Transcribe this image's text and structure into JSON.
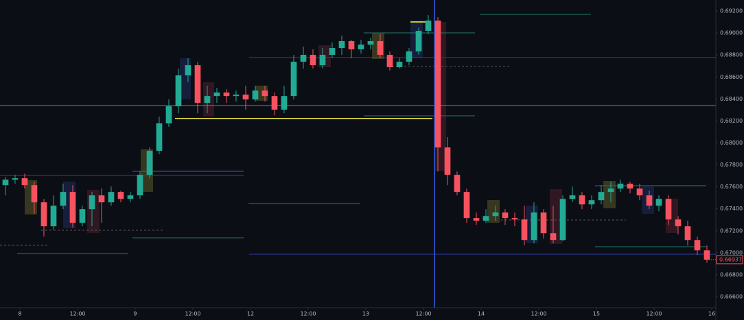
{
  "chart_data": {
    "type": "candlestick",
    "x": [
      -3,
      -1,
      1,
      3,
      5,
      7,
      9,
      11,
      13,
      15,
      17,
      19,
      21,
      23,
      25,
      27,
      29,
      31,
      33,
      35,
      37,
      39,
      41,
      43,
      45,
      47,
      49,
      51,
      53,
      55,
      57,
      59,
      61,
      63,
      65,
      67,
      69,
      71,
      73,
      75,
      77,
      79,
      81,
      83,
      85,
      87,
      89,
      91,
      93,
      95,
      97,
      99,
      101,
      103,
      105,
      107,
      109,
      111,
      113,
      115,
      117,
      119,
      121,
      123,
      125,
      127,
      129,
      131,
      133,
      135,
      137,
      139,
      141,
      143
    ],
    "open": [
      0.67615,
      0.67665,
      0.67678,
      0.67615,
      0.67459,
      0.67241,
      0.67428,
      0.67553,
      0.67272,
      0.67397,
      0.67522,
      0.67459,
      0.67553,
      0.6749,
      0.67522,
      0.67709,
      0.67927,
      0.68177,
      0.68333,
      0.68614,
      0.68707,
      0.68364,
      0.68426,
      0.68458,
      0.68426,
      0.68439,
      0.68395,
      0.68476,
      0.68426,
      0.68302,
      0.68426,
      0.68738,
      0.68801,
      0.68707,
      0.68801,
      0.68863,
      0.68926,
      0.68851,
      0.68894,
      0.68926,
      0.68801,
      0.68689,
      0.68738,
      0.68832,
      0.69019,
      0.69113,
      0.67958,
      0.67709,
      0.67553,
      0.67316,
      0.67291,
      0.67334,
      0.67366,
      0.67316,
      0.67303,
      0.67116,
      0.67366,
      0.67178,
      0.67116,
      0.6749,
      0.67522,
      0.6744,
      0.67478,
      0.67553,
      0.67584,
      0.67628,
      0.67584,
      0.67522,
      0.67428,
      0.6749,
      0.67303,
      0.67241,
      0.67116,
      0.67022
    ],
    "high": [
      0.6769,
      0.67709,
      0.67721,
      0.67646,
      0.6749,
      0.67522,
      0.67628,
      0.67615,
      0.67428,
      0.67553,
      0.67584,
      0.67603,
      0.67565,
      0.67553,
      0.6774,
      0.67958,
      0.68239,
      0.68395,
      0.68676,
      0.6877,
      0.68738,
      0.6852,
      0.68501,
      0.68489,
      0.68476,
      0.6852,
      0.6852,
      0.6852,
      0.68458,
      0.6852,
      0.68801,
      0.68876,
      0.68851,
      0.68863,
      0.68913,
      0.68976,
      0.68938,
      0.68938,
      0.68957,
      0.68988,
      0.68832,
      0.6877,
      0.68863,
      0.6905,
      0.69163,
      0.69144,
      0.68052,
      0.6774,
      0.67584,
      0.67366,
      0.67397,
      0.67428,
      0.67397,
      0.67366,
      0.67428,
      0.67459,
      0.67397,
      0.67428,
      0.67522,
      0.67603,
      0.67553,
      0.67522,
      0.67615,
      0.67646,
      0.67665,
      0.67646,
      0.67628,
      0.67565,
      0.67522,
      0.67522,
      0.67334,
      0.67291,
      0.67147,
      0.67066
    ],
    "low": [
      0.67522,
      0.67628,
      0.67584,
      0.67353,
      0.67147,
      0.6721,
      0.67397,
      0.67228,
      0.67241,
      0.67241,
      0.67272,
      0.67428,
      0.67459,
      0.67459,
      0.6749,
      0.67678,
      0.67896,
      0.68146,
      0.6827,
      0.68551,
      0.6827,
      0.6827,
      0.68364,
      0.68364,
      0.68376,
      0.68302,
      0.68376,
      0.68376,
      0.68252,
      0.6827,
      0.68395,
      0.68676,
      0.68676,
      0.68676,
      0.6877,
      0.68801,
      0.6877,
      0.68813,
      0.68851,
      0.6877,
      0.68657,
      0.68676,
      0.68707,
      0.68801,
      0.68988,
      0.6774,
      0.67615,
      0.67522,
      0.67272,
      0.67253,
      0.67272,
      0.67291,
      0.67253,
      0.67241,
      0.67066,
      0.67085,
      0.67128,
      0.67085,
      0.67104,
      0.67459,
      0.67397,
      0.67397,
      0.6744,
      0.67459,
      0.67553,
      0.6754,
      0.67478,
      0.67397,
      0.67378,
      0.67253,
      0.67166,
      0.67066,
      0.66979,
      0.6691
    ],
    "close": [
      0.67665,
      0.67678,
      0.67615,
      0.67459,
      0.67241,
      0.67428,
      0.67553,
      0.67272,
      0.67397,
      0.67522,
      0.67459,
      0.67553,
      0.6749,
      0.67522,
      0.67709,
      0.67927,
      0.68177,
      0.68333,
      0.68614,
      0.68707,
      0.68364,
      0.68426,
      0.68458,
      0.68426,
      0.68439,
      0.68395,
      0.68476,
      0.68426,
      0.68302,
      0.68426,
      0.68738,
      0.68801,
      0.68707,
      0.68801,
      0.68863,
      0.68926,
      0.68851,
      0.68894,
      0.68926,
      0.68801,
      0.68689,
      0.68738,
      0.68832,
      0.69019,
      0.69113,
      0.67958,
      0.67709,
      0.67553,
      0.67316,
      0.67291,
      0.67334,
      0.67366,
      0.67316,
      0.67303,
      0.67116,
      0.67366,
      0.67178,
      0.67116,
      0.6749,
      0.67522,
      0.6744,
      0.67478,
      0.67553,
      0.67584,
      0.67628,
      0.67584,
      0.67522,
      0.67428,
      0.6749,
      0.67303,
      0.67241,
      0.67116,
      0.67022,
      0.66937
    ],
    "up_color": "#22ab94",
    "down_color": "#f7525f",
    "xlim": [
      -4.14,
      144.86
    ],
    "ylim": [
      0.665,
      0.693
    ],
    "xticks": [
      {
        "value": 0,
        "label": "8"
      },
      {
        "value": 12,
        "label": "12:00"
      },
      {
        "value": 24,
        "label": "9"
      },
      {
        "value": 36,
        "label": "12:00"
      },
      {
        "value": 48,
        "label": "12"
      },
      {
        "value": 60,
        "label": "12:00"
      },
      {
        "value": 72,
        "label": "13"
      },
      {
        "value": 84,
        "label": "12:00"
      },
      {
        "value": 96,
        "label": "14"
      },
      {
        "value": 108,
        "label": "12:00"
      },
      {
        "value": 120,
        "label": "15"
      },
      {
        "value": 132,
        "label": "12:00"
      },
      {
        "value": 144,
        "label": "16"
      }
    ],
    "yticks": [
      {
        "value": 0.692,
        "label": "0.69200"
      },
      {
        "value": 0.69,
        "label": "0.69000"
      },
      {
        "value": 0.688,
        "label": "0.68800"
      },
      {
        "value": 0.686,
        "label": "0.68600"
      },
      {
        "value": 0.684,
        "label": "0.68400"
      },
      {
        "value": 0.682,
        "label": "0.68200"
      },
      {
        "value": 0.68,
        "label": "0.68000"
      },
      {
        "value": 0.678,
        "label": "0.67800"
      },
      {
        "value": 0.676,
        "label": "0.67600"
      },
      {
        "value": 0.674,
        "label": "0.67400"
      },
      {
        "value": 0.672,
        "label": "0.67200"
      },
      {
        "value": 0.67,
        "label": "0.67000"
      },
      {
        "value": 0.668,
        "label": "0.66800"
      },
      {
        "value": 0.666,
        "label": "0.66600"
      }
    ],
    "last_price": {
      "value": 0.66937,
      "label": "0.66937"
    }
  }
}
